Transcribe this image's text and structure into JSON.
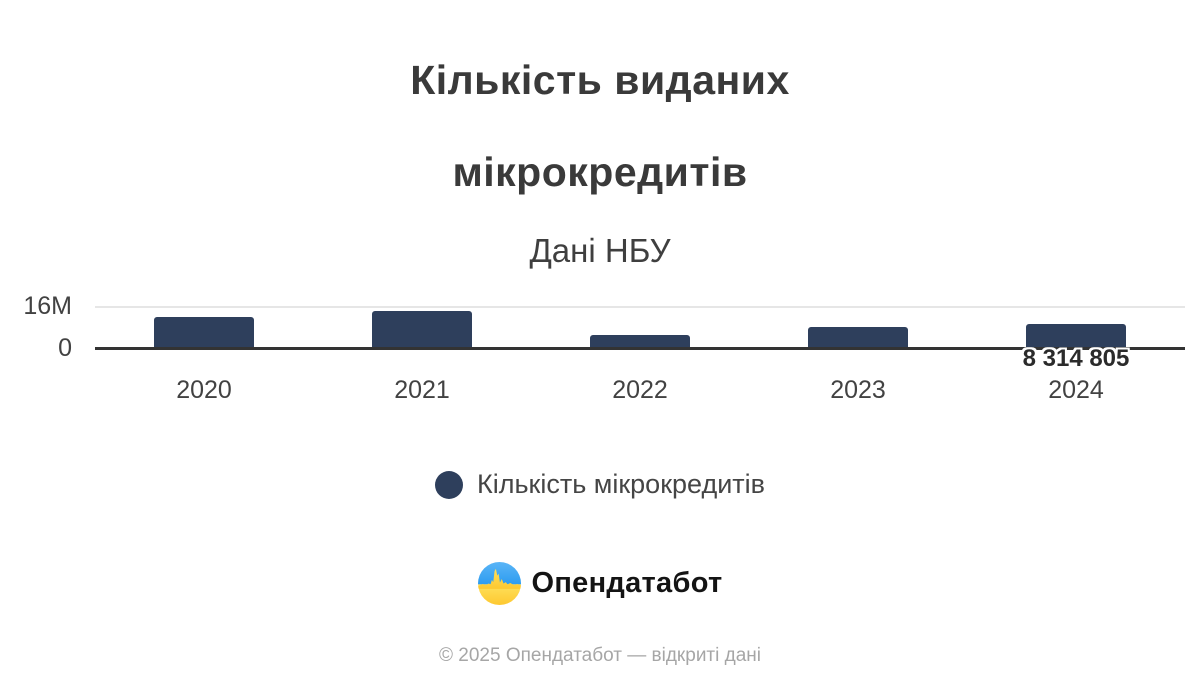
{
  "chart_data": {
    "type": "bar",
    "title": "Кількість виданих мікрокредитів",
    "title_lines": [
      "Кількість виданих",
      "мікрокредитів"
    ],
    "subtitle": "Дані НБУ",
    "categories": [
      "2020",
      "2021",
      "2022",
      "2023",
      "2024"
    ],
    "values": [
      10900000,
      13200000,
      4500000,
      7300000,
      8314805
    ],
    "data_labels": [
      "",
      "",
      "",
      "",
      "8 314 805"
    ],
    "ylim": [
      0,
      16000000
    ],
    "yticks": [
      {
        "value": 0,
        "label": "0"
      },
      {
        "value": 16000000,
        "label": "16M"
      }
    ],
    "grid": "single horizontal gridline at 16M",
    "legend_position": "bottom",
    "bar_color": "#2e3f5c",
    "legend": [
      {
        "label": "Кількість мікрокредитів",
        "color": "#2e3f5c"
      }
    ]
  },
  "branding": {
    "logo_text": "Опендатабот"
  },
  "footer": {
    "text": "© 2025 Опендатабот — відкриті дані"
  },
  "colors": {
    "bar": "#2e3f5c",
    "title_text": "#3a3a3a",
    "axis_text": "#424242",
    "gridline": "#e6e6e6",
    "axis_line": "#333333",
    "footer_text": "#a6a6a6",
    "logo_blue_light": "#5ab5f7",
    "logo_blue": "#2d9cf0",
    "logo_yellow_light": "#ffe15c",
    "logo_yellow": "#fdc830"
  }
}
